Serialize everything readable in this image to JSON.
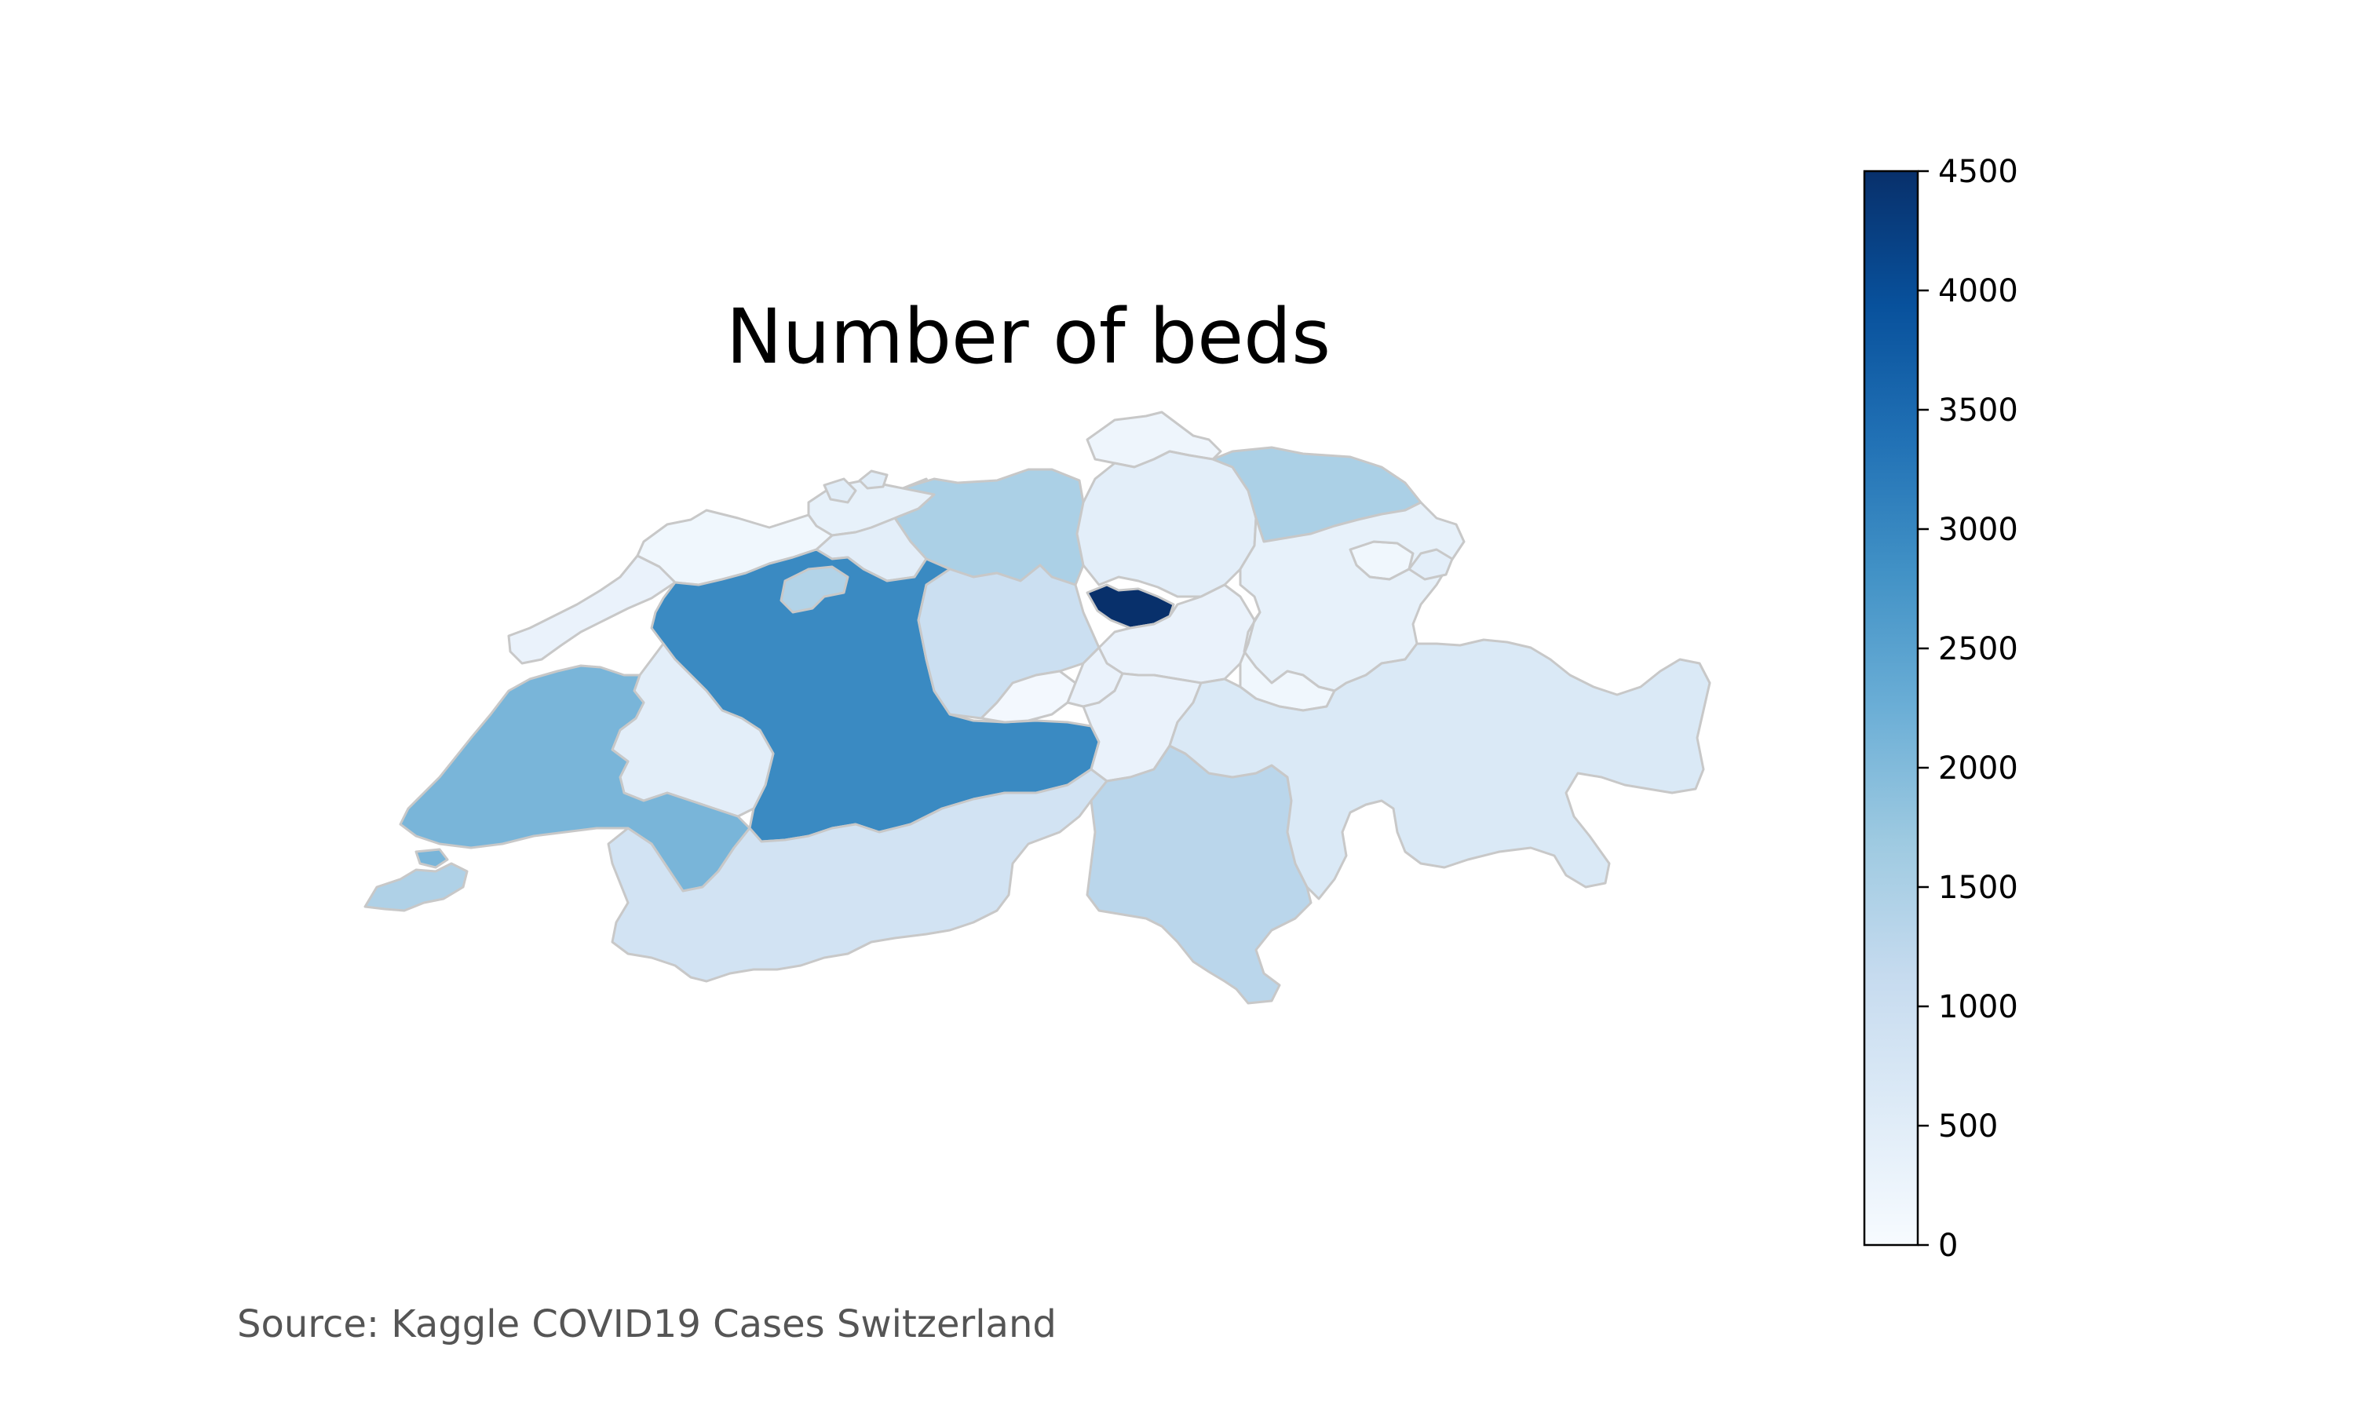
{
  "title": "Number of beds",
  "source": "Source: Kaggle COVID19 Cases Switzerland",
  "colorbar": {
    "min": 0,
    "max": 4500,
    "ticks": [
      "0",
      "500",
      "1000",
      "1500",
      "2000",
      "2500",
      "3000",
      "3500",
      "4000",
      "4500"
    ],
    "colormap": "Blues",
    "stops": [
      "#f7fbff",
      "#deebf7",
      "#c6dbef",
      "#9ecae1",
      "#6baed6",
      "#4292c6",
      "#2171b5",
      "#08519c",
      "#08306b"
    ]
  },
  "colors": {
    "border": "#c8c8c8",
    "colorbar_outline": "#000000"
  },
  "chart_data": {
    "type": "choropleth",
    "value_range": [
      0,
      4500
    ],
    "regions": [
      {
        "id": "r01",
        "value": 200
      },
      {
        "id": "r02",
        "value": 350
      },
      {
        "id": "r03",
        "value": 500
      },
      {
        "id": "r04",
        "value": 1500
      },
      {
        "id": "r05",
        "value": 450
      },
      {
        "id": "r06",
        "value": 150
      },
      {
        "id": "r07",
        "value": 450
      },
      {
        "id": "r08",
        "value": 1500
      },
      {
        "id": "r09",
        "value": 150
      },
      {
        "id": "r10",
        "value": 300
      },
      {
        "id": "r11",
        "value": 350
      },
      {
        "id": "r12",
        "value": 2950
      },
      {
        "id": "r13",
        "value": 1000
      },
      {
        "id": "r14",
        "value": 4500
      },
      {
        "id": "r15",
        "value": 300
      },
      {
        "id": "r16",
        "value": 150
      },
      {
        "id": "r17",
        "value": 100
      },
      {
        "id": "r18",
        "value": 300
      },
      {
        "id": "r19",
        "value": 1400
      },
      {
        "id": "r20",
        "value": 450
      },
      {
        "id": "r21",
        "value": 300
      },
      {
        "id": "r22",
        "value": 450
      },
      {
        "id": "r23",
        "value": 500
      },
      {
        "id": "r24",
        "value": 2100
      },
      {
        "id": "r25",
        "value": 2100
      },
      {
        "id": "r26",
        "value": 850
      },
      {
        "id": "r27",
        "value": 1300
      },
      {
        "id": "r28",
        "value": 650
      },
      {
        "id": "r29",
        "value": 1450
      }
    ]
  }
}
